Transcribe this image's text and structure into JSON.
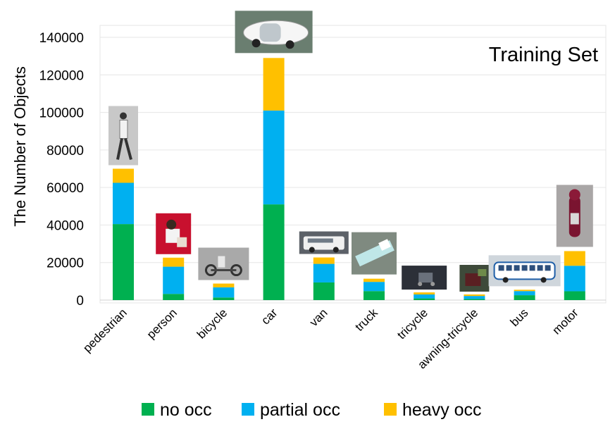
{
  "chart_data": {
    "type": "bar",
    "stacked": true,
    "title": "Training Set",
    "xlabel": "",
    "ylabel": "The Number of Objects",
    "ylim": [
      0,
      140000
    ],
    "yticks": [
      "0",
      "20000",
      "40000",
      "60000",
      "80000",
      "100000",
      "120000",
      "140000"
    ],
    "grid": true,
    "legend_position": "bottom",
    "categories": [
      "pedestrian",
      "person",
      "bicycle",
      "car",
      "van",
      "truck",
      "tricycle",
      "awning-tricycle",
      "bus",
      "motor"
    ],
    "series": [
      {
        "name": "no occ",
        "color": "#00b050",
        "values": [
          40500,
          3300,
          1400,
          51000,
          9400,
          4800,
          900,
          600,
          2600,
          4700
        ]
      },
      {
        "name": "partial occ",
        "color": "#00b0f0",
        "values": [
          22000,
          14500,
          5400,
          50000,
          9900,
          4900,
          2100,
          1600,
          2200,
          13600
        ]
      },
      {
        "name": "heavy occ",
        "color": "#ffc000",
        "values": [
          7500,
          4800,
          2000,
          28000,
          3400,
          1700,
          1100,
          800,
          700,
          7800
        ]
      }
    ],
    "thumbnails": [
      {
        "category": "pedestrian",
        "icon": "pedestrian-photo-icon"
      },
      {
        "category": "person",
        "icon": "person-photo-icon"
      },
      {
        "category": "bicycle",
        "icon": "bicycle-photo-icon"
      },
      {
        "category": "car",
        "icon": "car-photo-icon"
      },
      {
        "category": "van",
        "icon": "van-photo-icon"
      },
      {
        "category": "truck",
        "icon": "truck-photo-icon"
      },
      {
        "category": "tricycle",
        "icon": "tricycle-photo-icon"
      },
      {
        "category": "awning-tricycle",
        "icon": "awning-tricycle-photo-icon"
      },
      {
        "category": "bus",
        "icon": "bus-photo-icon"
      },
      {
        "category": "motor",
        "icon": "motor-photo-icon"
      }
    ]
  }
}
